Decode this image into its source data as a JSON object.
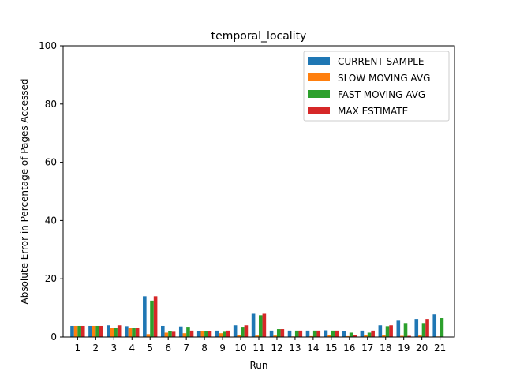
{
  "chart_data": {
    "type": "bar",
    "title": "temporal_locality",
    "xlabel": "Run",
    "ylabel": "Absolute Error in Percentage of Pages Accessed",
    "ylim": [
      0,
      100
    ],
    "yticks": [
      0,
      20,
      40,
      60,
      80,
      100
    ],
    "grid": false,
    "legend_position": "top-right",
    "categories": [
      "1",
      "2",
      "3",
      "4",
      "5",
      "6",
      "7",
      "8",
      "9",
      "10",
      "11",
      "12",
      "13",
      "14",
      "15",
      "16",
      "17",
      "18",
      "19",
      "20",
      "21"
    ],
    "series": [
      {
        "name": "CURRENT SAMPLE",
        "color": "#1f77b4",
        "values": [
          3.8,
          3.8,
          4.0,
          3.7,
          14.0,
          3.8,
          3.6,
          2.0,
          2.2,
          4.0,
          8.0,
          2.2,
          2.2,
          2.2,
          2.3,
          2.0,
          2.2,
          4.0,
          5.6,
          6.2,
          7.8
        ]
      },
      {
        "name": "SLOW MOVING AVG",
        "color": "#ff7f0e",
        "values": [
          3.8,
          3.8,
          3.0,
          3.0,
          1.0,
          1.5,
          1.3,
          1.9,
          1.3,
          0.8,
          0.5,
          0.5,
          0.2,
          0.3,
          0.8,
          0.3,
          0.6,
          0.8,
          0.4,
          0.5,
          0.2
        ]
      },
      {
        "name": "FAST MOVING AVG",
        "color": "#2ca02c",
        "values": [
          3.8,
          3.8,
          3.2,
          3.0,
          12.5,
          2.0,
          3.5,
          2.0,
          1.8,
          3.5,
          7.5,
          2.7,
          2.2,
          2.2,
          2.2,
          1.5,
          1.5,
          3.7,
          4.8,
          4.8,
          6.5
        ]
      },
      {
        "name": "MAX ESTIMATE",
        "color": "#d62728",
        "values": [
          3.8,
          3.8,
          4.0,
          3.0,
          14.0,
          1.8,
          2.2,
          2.0,
          2.2,
          4.0,
          8.0,
          2.7,
          2.2,
          2.2,
          2.2,
          0.7,
          2.2,
          4.0,
          0.4,
          6.2,
          0
        ]
      }
    ]
  }
}
